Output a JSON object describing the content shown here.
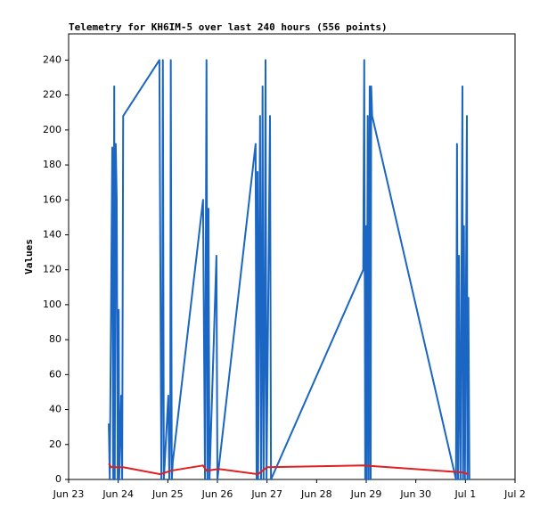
{
  "chart_data": {
    "type": "line",
    "title": "Telemetry for KH6IM-5 over last 240 hours (556 points)",
    "y_label": "Values",
    "xlim": [
      23,
      32
    ],
    "xticks": [
      {
        "value": 23,
        "label": "Jun 23"
      },
      {
        "value": 24,
        "label": "Jun 24"
      },
      {
        "value": 25,
        "label": "Jun 25"
      },
      {
        "value": 26,
        "label": "Jun 26"
      },
      {
        "value": 27,
        "label": "Jun 27"
      },
      {
        "value": 28,
        "label": "Jun 28"
      },
      {
        "value": 29,
        "label": "Jun 29"
      },
      {
        "value": 30,
        "label": "Jun 30"
      },
      {
        "value": 31,
        "label": "Jul 1"
      },
      {
        "value": 32,
        "label": "Jul 2"
      }
    ],
    "ylim": [
      0,
      255
    ],
    "yticks": [
      0,
      20,
      40,
      60,
      80,
      100,
      120,
      140,
      160,
      180,
      200,
      220,
      240
    ],
    "grid": false,
    "series": [
      {
        "color": "#1a66c2",
        "x": [
          23.81,
          23.83,
          23.88,
          23.9,
          23.92,
          23.93,
          23.95,
          23.97,
          23.99,
          24.01,
          24.02,
          24.06,
          24.08,
          24.1,
          24.83,
          24.85,
          24.87,
          24.89,
          24.9,
          24.92,
          25.01,
          25.03,
          25.05,
          25.06,
          25.08,
          25.1,
          25.71,
          25.73,
          25.75,
          25.78,
          25.8,
          25.82,
          25.84,
          25.98,
          26.0,
          26.77,
          26.79,
          26.81,
          26.82,
          26.86,
          26.88,
          26.9,
          26.91,
          26.93,
          26.95,
          26.97,
          26.99,
          27.06,
          27.08,
          28.94,
          28.96,
          28.98,
          29.0,
          29.01,
          29.03,
          29.05,
          29.07,
          29.09,
          29.1,
          29.12,
          30.81,
          30.83,
          30.85,
          30.87,
          30.88,
          30.9,
          30.94,
          30.95,
          30.97,
          30.99,
          31.03,
          31.04,
          31.06,
          31.08
        ],
        "values": [
          32,
          0,
          190,
          0,
          225,
          0,
          192,
          160,
          0,
          97,
          0,
          48,
          0,
          208,
          240,
          120,
          0,
          97,
          240,
          0,
          48,
          0,
          36,
          240,
          0,
          10,
          160,
          80,
          0,
          240,
          0,
          155,
          0,
          128,
          0,
          192,
          0,
          176,
          0,
          208,
          0,
          112,
          225,
          0,
          65,
          240,
          0,
          208,
          0,
          120,
          240,
          0,
          145,
          0,
          208,
          0,
          225,
          0,
          225,
          208,
          0,
          192,
          0,
          128,
          64,
          0,
          225,
          0,
          145,
          0,
          208,
          0,
          104,
          0
        ]
      },
      {
        "color": "#e02020",
        "x": [
          23.81,
          23.86,
          24.1,
          24.85,
          25.06,
          25.71,
          25.78,
          26.02,
          26.82,
          27.0,
          28.94,
          30.95,
          31.06
        ],
        "values": [
          9,
          7,
          7,
          3,
          5,
          8,
          5,
          6,
          3,
          7,
          8,
          4,
          3
        ]
      }
    ]
  }
}
